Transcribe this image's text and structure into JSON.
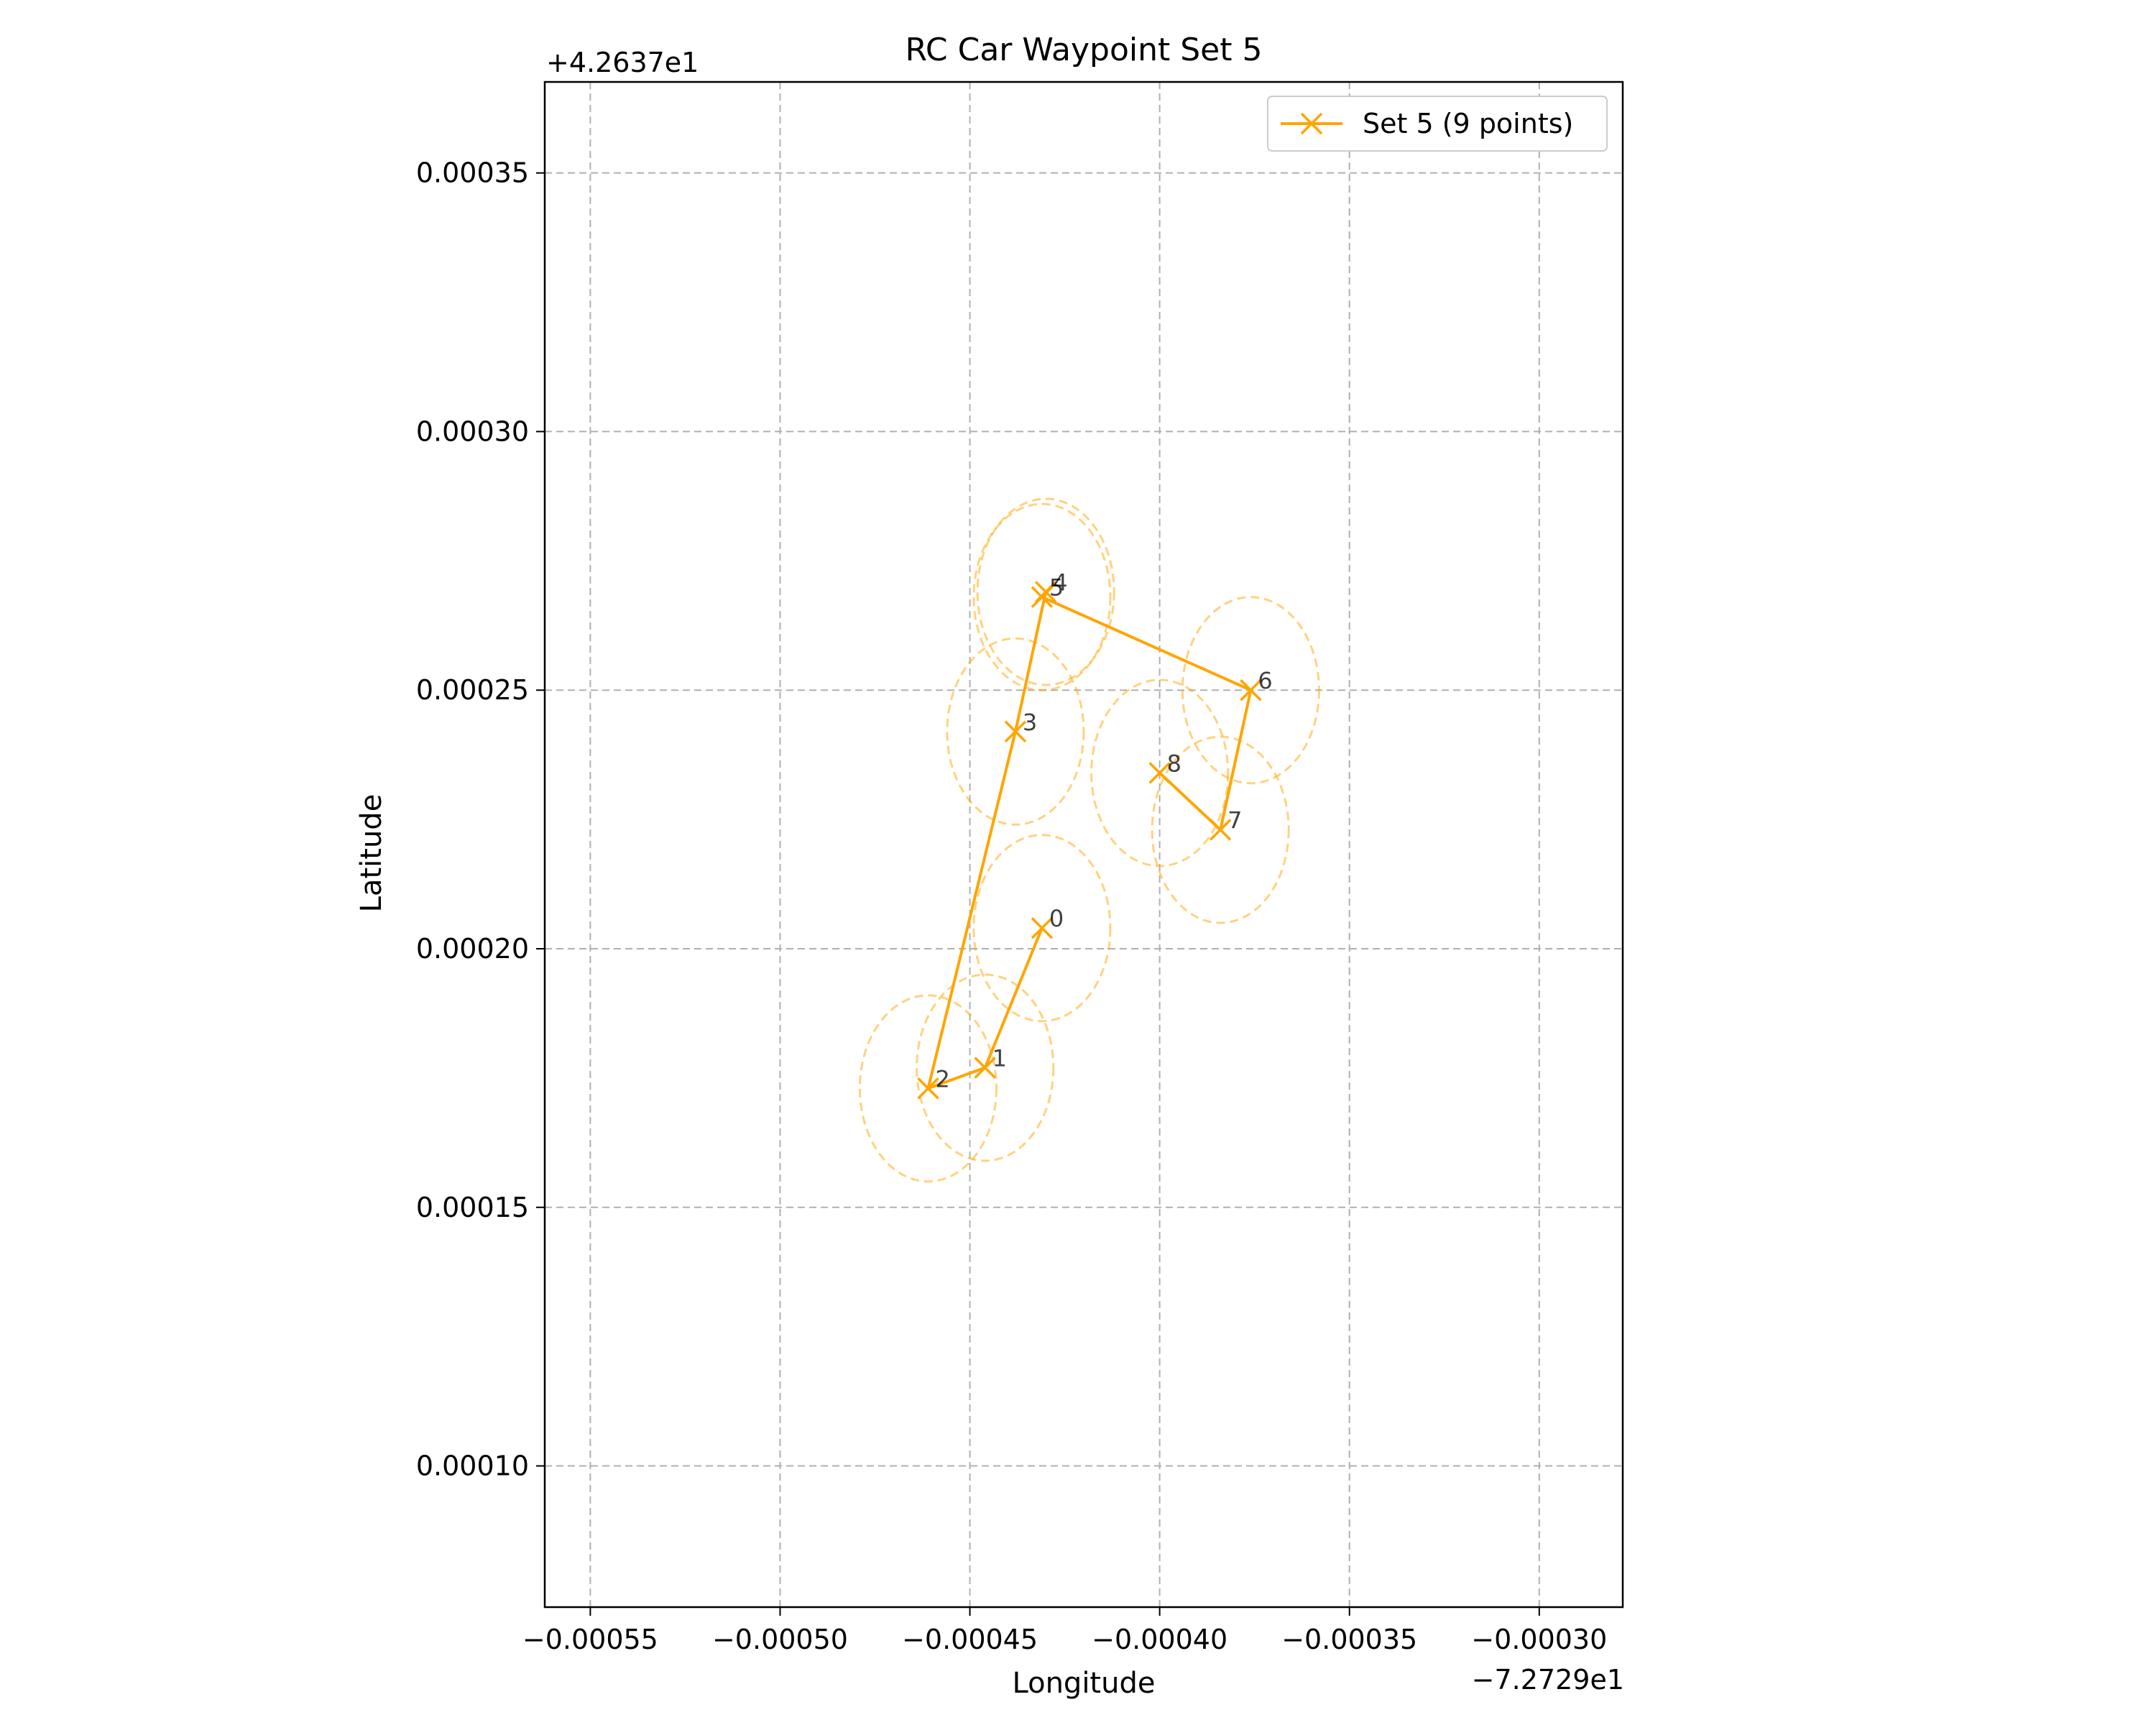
{
  "chart_data": {
    "type": "scatter",
    "title": "RC Car Waypoint Set 5",
    "xlabel": "Longitude",
    "ylabel": "Latitude",
    "x_offset_label": "−7.2729e1",
    "y_offset_label": "+4.2637e1",
    "xlim": [
      -0.000562,
      -0.000278
    ],
    "ylim": [
      7.27e-05,
      0.0003676
    ],
    "x_ticks": [
      -0.00055,
      -0.0005,
      -0.00045,
      -0.0004,
      -0.00035,
      -0.0003
    ],
    "x_tick_labels": [
      "−0.00055",
      "−0.00050",
      "−0.00045",
      "−0.00040",
      "−0.00035",
      "−0.00030"
    ],
    "y_ticks": [
      0.0001,
      0.00015,
      0.0002,
      0.00025,
      0.0003,
      0.00035
    ],
    "y_tick_labels": [
      "0.00010",
      "0.00015",
      "0.00020",
      "0.00025",
      "0.00030",
      "0.00035"
    ],
    "grid": true,
    "legend_position": "top-right",
    "series": [
      {
        "name": "Set 5 (9 points)",
        "color": "#ffa500",
        "marker": "x",
        "point_labels": [
          "0",
          "1",
          "2",
          "3",
          "4",
          "5",
          "6",
          "7",
          "8"
        ],
        "x": [
          -0.000431,
          -0.000446,
          -0.000461,
          -0.000438,
          -0.00043,
          -0.000431,
          -0.000376,
          -0.000384,
          -0.0004
        ],
        "y": [
          0.000204,
          0.000177,
          0.000173,
          0.000242,
          0.000269,
          0.000268,
          0.00025,
          0.000223,
          0.000234
        ],
        "radius_circles": {
          "radius_lon": 1.8e-05,
          "radius_lat": 1.8e-05
        }
      }
    ]
  }
}
